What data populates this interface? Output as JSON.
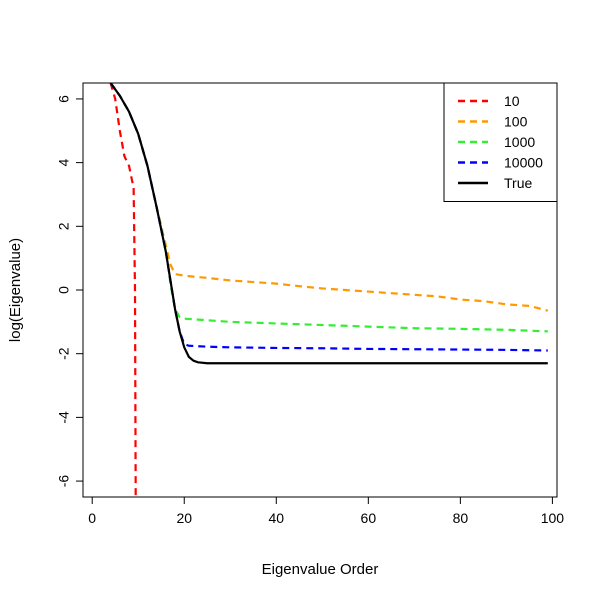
{
  "chart_data": {
    "type": "line",
    "title": "",
    "xlabel": "Eigenvalue Order",
    "ylabel": "log(Eigenvalue)",
    "xlim": [
      -2,
      101
    ],
    "ylim": [
      -6.5,
      6.5
    ],
    "xticks": [
      0,
      20,
      40,
      60,
      80,
      100
    ],
    "yticks": [
      -6,
      -4,
      -2,
      0,
      2,
      4,
      6
    ],
    "legend_position": "top-right",
    "series": [
      {
        "name": "10",
        "color": "#ff0000",
        "dash": "dashed",
        "points": [
          [
            4,
            6.5
          ],
          [
            5,
            6.0
          ],
          [
            6,
            5.0
          ],
          [
            7,
            4.2
          ],
          [
            8,
            3.9
          ],
          [
            9,
            3.2
          ],
          [
            9.3,
            0
          ],
          [
            9.45,
            -6.5
          ]
        ]
      },
      {
        "name": "100",
        "color": "#ff9900",
        "dash": "dashed",
        "points": [
          [
            4,
            6.5
          ],
          [
            6,
            6.1
          ],
          [
            8,
            5.6
          ],
          [
            10,
            4.9
          ],
          [
            12,
            3.9
          ],
          [
            14,
            2.6
          ],
          [
            16,
            1.4
          ],
          [
            17,
            0.8
          ],
          [
            18,
            0.5
          ],
          [
            20,
            0.45
          ],
          [
            22,
            0.42
          ],
          [
            25,
            0.38
          ],
          [
            30,
            0.3
          ],
          [
            35,
            0.25
          ],
          [
            40,
            0.2
          ],
          [
            45,
            0.12
          ],
          [
            50,
            0.05
          ],
          [
            55,
            0.0
          ],
          [
            60,
            -0.05
          ],
          [
            65,
            -0.1
          ],
          [
            70,
            -0.15
          ],
          [
            75,
            -0.2
          ],
          [
            80,
            -0.3
          ],
          [
            85,
            -0.35
          ],
          [
            90,
            -0.45
          ],
          [
            95,
            -0.5
          ],
          [
            99,
            -0.65
          ]
        ]
      },
      {
        "name": "1000",
        "color": "#33ee33",
        "dash": "dashed",
        "points": [
          [
            4,
            6.5
          ],
          [
            6,
            6.1
          ],
          [
            8,
            5.6
          ],
          [
            10,
            4.9
          ],
          [
            12,
            3.9
          ],
          [
            14,
            2.6
          ],
          [
            16,
            1.3
          ],
          [
            17,
            0.2
          ],
          [
            18,
            -0.6
          ],
          [
            19,
            -0.85
          ],
          [
            20,
            -0.9
          ],
          [
            25,
            -0.95
          ],
          [
            30,
            -1.0
          ],
          [
            40,
            -1.05
          ],
          [
            50,
            -1.1
          ],
          [
            60,
            -1.15
          ],
          [
            70,
            -1.2
          ],
          [
            80,
            -1.22
          ],
          [
            90,
            -1.25
          ],
          [
            99,
            -1.3
          ]
        ]
      },
      {
        "name": "10000",
        "color": "#0000ff",
        "dash": "dashed",
        "points": [
          [
            4,
            6.5
          ],
          [
            6,
            6.1
          ],
          [
            8,
            5.6
          ],
          [
            10,
            4.9
          ],
          [
            12,
            3.9
          ],
          [
            14,
            2.6
          ],
          [
            16,
            1.2
          ],
          [
            17,
            0.3
          ],
          [
            18,
            -0.6
          ],
          [
            19,
            -1.3
          ],
          [
            20,
            -1.7
          ],
          [
            21,
            -1.75
          ],
          [
            25,
            -1.78
          ],
          [
            30,
            -1.8
          ],
          [
            40,
            -1.82
          ],
          [
            50,
            -1.83
          ],
          [
            60,
            -1.85
          ],
          [
            70,
            -1.86
          ],
          [
            80,
            -1.87
          ],
          [
            90,
            -1.88
          ],
          [
            99,
            -1.9
          ]
        ]
      },
      {
        "name": "True",
        "color": "#000000",
        "dash": "solid",
        "points": [
          [
            4,
            6.5
          ],
          [
            6,
            6.1
          ],
          [
            8,
            5.6
          ],
          [
            10,
            4.9
          ],
          [
            12,
            3.9
          ],
          [
            14,
            2.6
          ],
          [
            16,
            1.2
          ],
          [
            17,
            0.3
          ],
          [
            18,
            -0.6
          ],
          [
            19,
            -1.3
          ],
          [
            20,
            -1.8
          ],
          [
            21,
            -2.1
          ],
          [
            22,
            -2.22
          ],
          [
            23,
            -2.27
          ],
          [
            25,
            -2.3
          ],
          [
            30,
            -2.3
          ],
          [
            40,
            -2.3
          ],
          [
            50,
            -2.3
          ],
          [
            60,
            -2.3
          ],
          [
            70,
            -2.3
          ],
          [
            80,
            -2.3
          ],
          [
            90,
            -2.3
          ],
          [
            99,
            -2.3
          ]
        ]
      }
    ]
  }
}
